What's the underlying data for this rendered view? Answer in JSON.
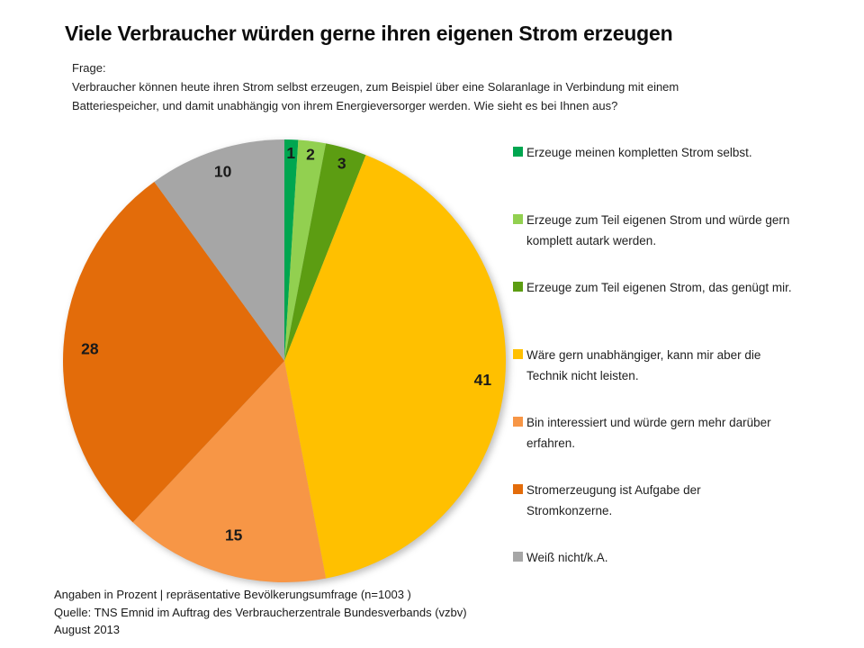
{
  "title": "Viele Verbraucher würden gerne ihren eigenen Strom erzeugen",
  "question": {
    "label": "Frage:",
    "lines": [
      "Verbraucher können heute ihren Strom selbst erzeugen, zum Beispiel über eine Solaranlage in Verbindung mit einem",
      "Batteriespeicher, und damit unabhängig von ihrem Energieversorger werden. Wie sieht es bei Ihnen aus?"
    ]
  },
  "chart_data": {
    "type": "pie",
    "title": "Viele Verbraucher würden gerne ihren eigenen Strom erzeugen",
    "unit": "percent",
    "start_angle_deg": 0,
    "direction": "clockwise",
    "legend_position": "right",
    "data_labels": "value-inside",
    "total": 100,
    "slices": [
      {
        "label": "Erzeuge meinen kompletten Strom selbst.",
        "legend_lines": [
          "Erzeuge meinen kompletten Strom selbst."
        ],
        "value": 1,
        "color": "#00A650",
        "label_pos": 0.94
      },
      {
        "label": "Erzeuge zum Teil eigenen Strom und würde gern komplett autark werden.",
        "legend_lines": [
          "Erzeuge zum Teil eigenen Strom und würde gern",
          "komplett autark werden."
        ],
        "value": 2,
        "color": "#92D050",
        "label_pos": 0.94
      },
      {
        "label": "Erzeuge zum Teil eigenen Strom, das genügt mir.",
        "legend_lines": [
          "Erzeuge zum Teil eigenen Strom, das genügt mir."
        ],
        "value": 3,
        "color": "#5C9D12",
        "label_pos": 0.93
      },
      {
        "label": "Wäre gern unabhängiger, kann mir aber die Technik nicht leisten.",
        "legend_lines": [
          "Wäre gern unabhängiger, kann mir aber die",
          "Technik nicht leisten."
        ],
        "value": 41,
        "color": "#FFC000",
        "label_pos": 0.9
      },
      {
        "label": "Bin interessiert und würde gern mehr darüber erfahren.",
        "legend_lines": [
          "Bin interessiert und würde gern mehr darüber",
          "erfahren."
        ],
        "value": 15,
        "color": "#F79646",
        "label_pos": 0.82
      },
      {
        "label": "Stromerzeugung ist Aufgabe der Stromkonzerne.",
        "legend_lines": [
          "Stromerzeugung ist Aufgabe der",
          "Stromkonzerne."
        ],
        "value": 28,
        "color": "#E36C0A",
        "label_pos": 0.88
      },
      {
        "label": "Weiß nicht/k.A.",
        "legend_lines": [
          "Weiß nicht/k.A."
        ],
        "value": 10,
        "color": "#A6A6A6",
        "label_pos": 0.9
      }
    ]
  },
  "footer": {
    "lines": [
      "Angaben in Prozent | repräsentative Bevölkerungsumfrage (n=1003 )",
      "Quelle: TNS Emnid im Auftrag des Verbraucherzentrale Bundesverbands (vzbv)",
      "August 2013"
    ]
  }
}
